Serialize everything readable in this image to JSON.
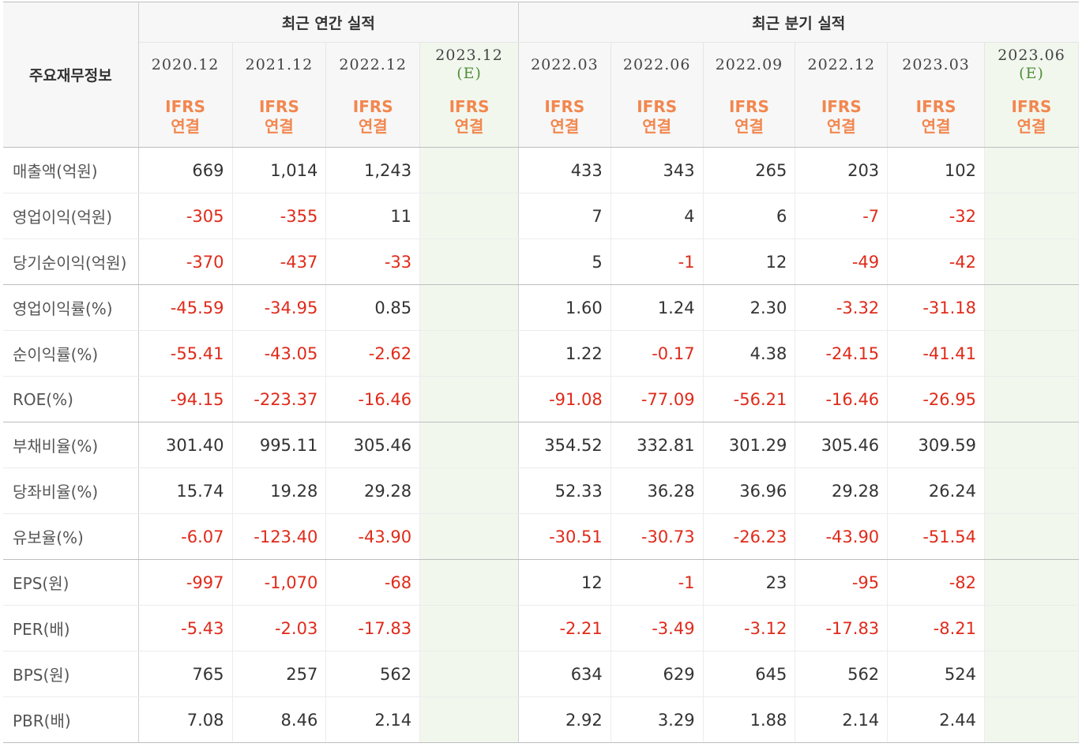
{
  "corner_label": "주요재무정보",
  "groups": {
    "annual": "최근 연간 실적",
    "quarterly": "최근 분기 실적"
  },
  "periods": [
    {
      "date": "2020.12",
      "est": "",
      "type1": "IFRS",
      "type2": "연결"
    },
    {
      "date": "2021.12",
      "est": "",
      "type1": "IFRS",
      "type2": "연결"
    },
    {
      "date": "2022.12",
      "est": "",
      "type1": "IFRS",
      "type2": "연결"
    },
    {
      "date": "2023.12",
      "est": "(E)",
      "type1": "IFRS",
      "type2": "연결"
    },
    {
      "date": "2022.03",
      "est": "",
      "type1": "IFRS",
      "type2": "연결"
    },
    {
      "date": "2022.06",
      "est": "",
      "type1": "IFRS",
      "type2": "연결"
    },
    {
      "date": "2022.09",
      "est": "",
      "type1": "IFRS",
      "type2": "연결"
    },
    {
      "date": "2022.12",
      "est": "",
      "type1": "IFRS",
      "type2": "연결"
    },
    {
      "date": "2023.03",
      "est": "",
      "type1": "IFRS",
      "type2": "연결"
    },
    {
      "date": "2023.06",
      "est": "(E)",
      "type1": "IFRS",
      "type2": "연결"
    }
  ],
  "rows": [
    {
      "label": "매출액(억원)",
      "values": [
        "669",
        "1,014",
        "1,243",
        "",
        "433",
        "343",
        "265",
        "203",
        "102",
        ""
      ]
    },
    {
      "label": "영업이익(억원)",
      "values": [
        "-305",
        "-355",
        "11",
        "",
        "7",
        "4",
        "6",
        "-7",
        "-32",
        ""
      ]
    },
    {
      "label": "당기순이익(억원)",
      "values": [
        "-370",
        "-437",
        "-33",
        "",
        "5",
        "-1",
        "12",
        "-49",
        "-42",
        ""
      ]
    },
    {
      "label": "영업이익률(%)",
      "values": [
        "-45.59",
        "-34.95",
        "0.85",
        "",
        "1.60",
        "1.24",
        "2.30",
        "-3.32",
        "-31.18",
        ""
      ]
    },
    {
      "label": "순이익률(%)",
      "values": [
        "-55.41",
        "-43.05",
        "-2.62",
        "",
        "1.22",
        "-0.17",
        "4.38",
        "-24.15",
        "-41.41",
        ""
      ]
    },
    {
      "label": "ROE(%)",
      "values": [
        "-94.15",
        "-223.37",
        "-16.46",
        "",
        "-91.08",
        "-77.09",
        "-56.21",
        "-16.46",
        "-26.95",
        ""
      ]
    },
    {
      "label": "부채비율(%)",
      "values": [
        "301.40",
        "995.11",
        "305.46",
        "",
        "354.52",
        "332.81",
        "301.29",
        "305.46",
        "309.59",
        ""
      ]
    },
    {
      "label": "당좌비율(%)",
      "values": [
        "15.74",
        "19.28",
        "29.28",
        "",
        "52.33",
        "36.28",
        "36.96",
        "29.28",
        "26.24",
        ""
      ]
    },
    {
      "label": "유보율(%)",
      "values": [
        "-6.07",
        "-123.40",
        "-43.90",
        "",
        "-30.51",
        "-30.73",
        "-26.23",
        "-43.90",
        "-51.54",
        ""
      ]
    },
    {
      "label": "EPS(원)",
      "values": [
        "-997",
        "-1,070",
        "-68",
        "",
        "12",
        "-1",
        "23",
        "-95",
        "-82",
        ""
      ]
    },
    {
      "label": "PER(배)",
      "values": [
        "-5.43",
        "-2.03",
        "-17.83",
        "",
        "-2.21",
        "-3.49",
        "-3.12",
        "-17.83",
        "-8.21",
        ""
      ]
    },
    {
      "label": "BPS(원)",
      "values": [
        "765",
        "257",
        "562",
        "",
        "634",
        "629",
        "645",
        "562",
        "524",
        ""
      ]
    },
    {
      "label": "PBR(배)",
      "values": [
        "7.08",
        "8.46",
        "2.14",
        "",
        "2.92",
        "3.29",
        "1.88",
        "2.14",
        "2.44",
        ""
      ]
    }
  ],
  "colors": {
    "negative": "#e02a1a",
    "ifrs": "#f2874f",
    "estimate": "#4f8f3a",
    "estimate_bg": "#f2f7ee"
  }
}
